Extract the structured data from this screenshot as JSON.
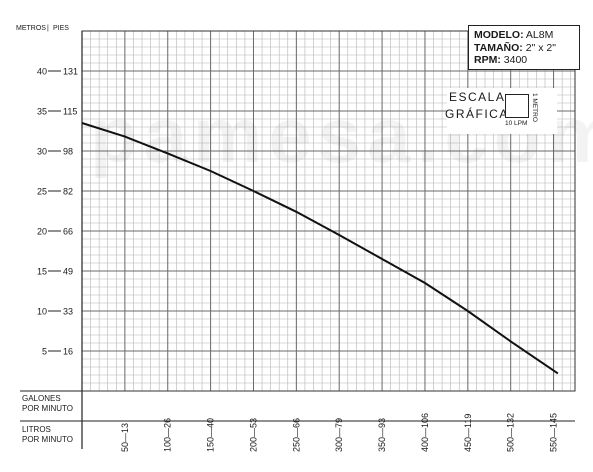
{
  "chart_data": {
    "type": "line",
    "y_left_header": "METROS",
    "y_right_header": "PIES",
    "y_metros_ticks": [
      "40",
      "35",
      "30",
      "25",
      "20",
      "15",
      "10",
      "5"
    ],
    "y_pies_ticks": [
      "131",
      "115",
      "98",
      "82",
      "66",
      "49",
      "33",
      "16"
    ],
    "y_metros_values": [
      40,
      35,
      30,
      25,
      20,
      15,
      10,
      5
    ],
    "ylim": [
      0,
      45
    ],
    "x_galones_label": [
      "GALONES",
      "POR MINUTO"
    ],
    "x_litros_label": [
      "LITROS",
      "POR MINUTO"
    ],
    "x_galones_ticks": [
      "13",
      "26",
      "40",
      "53",
      "66",
      "79",
      "93",
      "106",
      "119",
      "132",
      "145"
    ],
    "x_litros_ticks": [
      "50",
      "100",
      "150",
      "200",
      "250",
      "300",
      "350",
      "400",
      "450",
      "500",
      "550"
    ],
    "x_litros_values": [
      50,
      100,
      150,
      200,
      250,
      300,
      350,
      400,
      450,
      500,
      550
    ],
    "xlim": [
      0,
      575
    ],
    "grid": true,
    "series": [
      {
        "x": [
          0,
          50,
          100,
          150,
          200,
          250,
          300,
          350,
          400,
          450,
          500,
          555
        ],
        "y": [
          33.5,
          31.8,
          29.7,
          27.5,
          25.0,
          22.4,
          19.5,
          16.5,
          13.5,
          10.0,
          6.2,
          2.2
        ]
      }
    ]
  },
  "info_box": {
    "modelo_label": "MODELO:",
    "modelo_value": "AL8M",
    "tamano_label": "TAMAÑO:",
    "tamano_value": "2\" x 2\"",
    "rpm_label": "RPM:",
    "rpm_value": "3400"
  },
  "scale": {
    "word1": "ESCALA",
    "word2": "GRÁFICA",
    "lpm": "10 LPM",
    "metro": "1 METRO"
  },
  "watermark": "pamesa.com"
}
